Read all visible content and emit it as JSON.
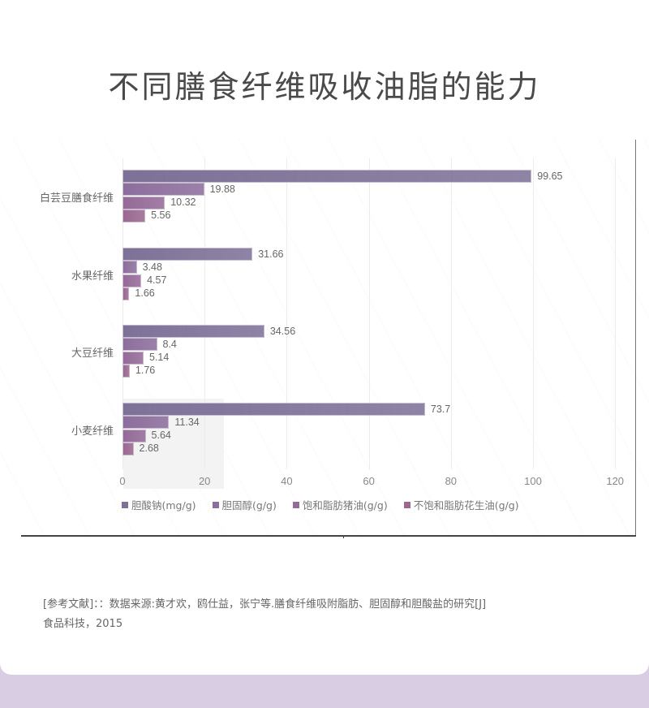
{
  "title": "不同膳食纤维吸收油脂的能力",
  "colors": {
    "series": [
      "#7e7198",
      "#8c6e9c",
      "#946a98",
      "#9a6891"
    ],
    "background": "#d9cde4",
    "card": "#ffffff"
  },
  "chart_data": {
    "type": "bar",
    "orientation": "horizontal",
    "title": "不同膳食纤维吸收油脂的能力",
    "categories": [
      "白芸豆膳食纤维",
      "水果纤维",
      "大豆纤维",
      "小麦纤维"
    ],
    "series": [
      {
        "name": "胆酸钠(mg/g)",
        "values": [
          99.65,
          31.66,
          34.56,
          73.7
        ]
      },
      {
        "name": "胆固醇(g/g)",
        "values": [
          19.88,
          3.48,
          8.4,
          11.34
        ]
      },
      {
        "name": "饱和脂肪猪油(g/g)",
        "values": [
          10.32,
          4.57,
          5.14,
          5.64
        ]
      },
      {
        "name": "不饱和脂肪花生油(g/g)",
        "values": [
          5.56,
          1.66,
          1.76,
          2.68
        ]
      }
    ],
    "xlabel": "",
    "ylabel": "",
    "xlim": [
      0,
      120
    ],
    "xticks": [
      "0",
      "20",
      "40",
      "60",
      "80",
      "100",
      "120"
    ],
    "grid": true,
    "legend_position": "bottom",
    "data_labels": true
  },
  "labels": {
    "categories": [
      "白芸豆膳食纤维",
      "水果纤维",
      "大豆纤维",
      "小麦纤维"
    ],
    "values": [
      [
        "99.65",
        "19.88",
        "10.32",
        "5.56"
      ],
      [
        "31.66",
        "3.48",
        "4.57",
        "1.66"
      ],
      [
        "34.56",
        "8.4",
        "5.14",
        "1.76"
      ],
      [
        "73.7",
        "11.34",
        "5.64",
        "2.68"
      ]
    ],
    "legend": [
      "胆酸钠(mg/g)",
      "胆固醇(g/g)",
      "饱和脂肪猪油(g/g)",
      "不饱和脂肪花生油(g/g)"
    ],
    "ticks": [
      "0",
      "20",
      "40",
      "60",
      "80",
      "100",
      "120"
    ]
  },
  "reference": {
    "line1": "[参考文献]：：数据来源:黄才欢，鸥仕益，张宁等.膳食纤维吸附脂肪、胆固醇和胆酸盐的研究[J]",
    "line2": "食品科技，2015"
  }
}
